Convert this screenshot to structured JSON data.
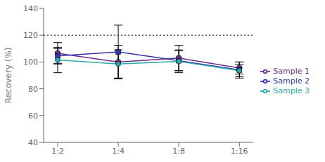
{
  "chart_data": {
    "type": "line",
    "categories": [
      "1:2",
      "1:4",
      "1:8",
      "1:16"
    ],
    "series": [
      {
        "name": "Sample 1",
        "color": "#6b2d8b",
        "marker": "circle",
        "values": [
          106.5,
          100.0,
          103.0,
          95.5
        ],
        "errors": [
          8.0,
          12.5,
          9.5,
          4.5
        ]
      },
      {
        "name": "Sample 2",
        "color": "#3333aa",
        "marker": "square",
        "values": [
          104.5,
          107.5,
          101.0,
          94.0
        ],
        "errors": [
          5.5,
          20.0,
          7.5,
          6.0
        ]
      },
      {
        "name": "Sample 3",
        "color": "#2aaaaa",
        "marker": "circle",
        "values": [
          101.5,
          98.5,
          100.5,
          93.5
        ],
        "errors": [
          9.5,
          10.5,
          8.5,
          4.5
        ]
      }
    ],
    "reference_lines": [
      {
        "y": 120,
        "line_style": "dotted",
        "color": "#000000"
      }
    ],
    "ylabel": "Recovery (%)",
    "ylim": [
      40,
      140
    ],
    "yticks": [
      40,
      60,
      80,
      100,
      120,
      140
    ],
    "grid": false,
    "legend": "right"
  }
}
